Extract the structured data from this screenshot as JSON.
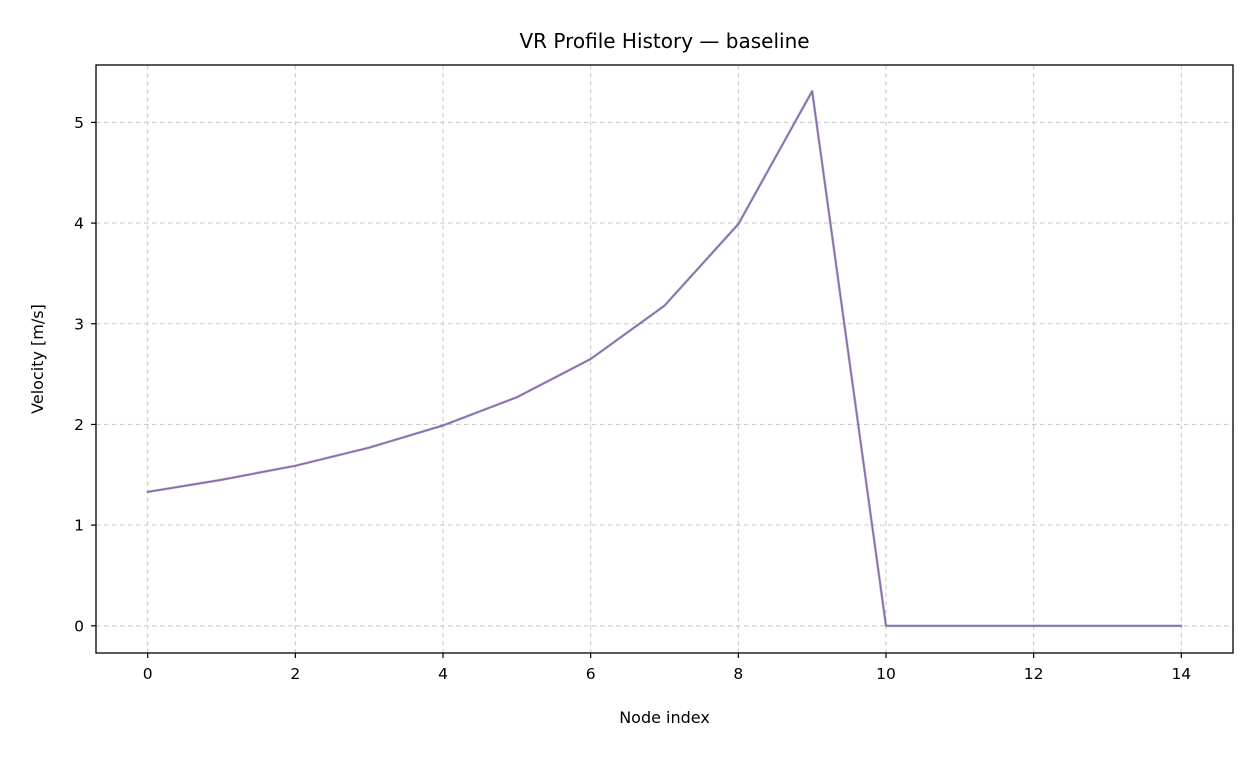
{
  "chart_data": {
    "type": "line",
    "title": "VR Profile History — baseline",
    "xlabel": "Node index",
    "ylabel": "Velocity [m/s]",
    "xlim": [
      -0.7,
      14.7
    ],
    "ylim": [
      -0.27,
      5.57
    ],
    "xticks": [
      0,
      2,
      4,
      6,
      8,
      10,
      12,
      14
    ],
    "xtick_labels": [
      "0",
      "2",
      "4",
      "6",
      "8",
      "10",
      "12",
      "14"
    ],
    "yticks": [
      0,
      1,
      2,
      3,
      4,
      5
    ],
    "ytick_labels": [
      "0",
      "1",
      "2",
      "3",
      "4",
      "5"
    ],
    "grid": true,
    "legend": "none",
    "colors": {
      "series": "#8c6bb1",
      "series_overlay": "#7f7f9f"
    },
    "series": [
      {
        "x": [
          0,
          1,
          2,
          3,
          4,
          5,
          6,
          7,
          8,
          9,
          10,
          11,
          12,
          13,
          14
        ],
        "values": [
          1.33,
          1.45,
          1.59,
          1.77,
          1.99,
          2.27,
          2.65,
          3.18,
          3.99,
          5.31,
          0.0,
          0.0,
          0.0,
          0.0,
          0.0
        ]
      }
    ]
  }
}
